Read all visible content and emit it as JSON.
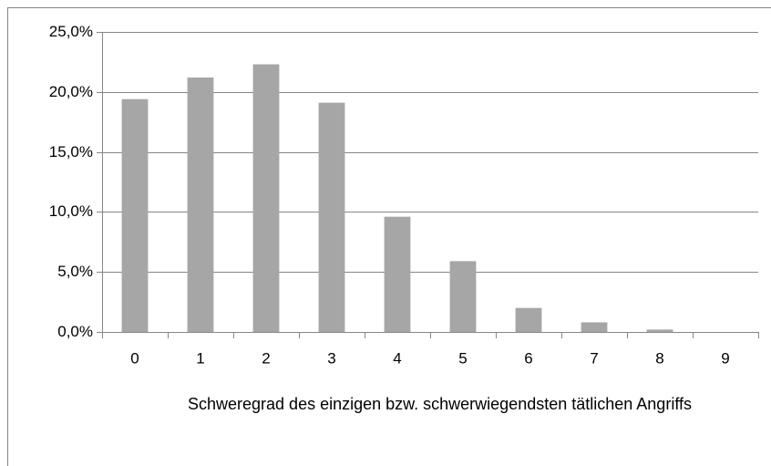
{
  "chart_data": {
    "type": "bar",
    "x_label": "Schweregrad des einzigen bzw. schwerwiegendsten tätlichen Angriffs",
    "categories": [
      "0",
      "1",
      "2",
      "3",
      "4",
      "5",
      "6",
      "7",
      "8",
      "9"
    ],
    "values": [
      19.4,
      21.2,
      22.3,
      19.1,
      9.6,
      5.9,
      2.0,
      0.8,
      0.2,
      0.0
    ],
    "color": "#a6a6a6",
    "ylim": [
      0,
      25
    ],
    "yticks": [
      {
        "value": 0,
        "label": "0,0%"
      },
      {
        "value": 5,
        "label": "5,0%"
      },
      {
        "value": 10,
        "label": "10,0%"
      },
      {
        "value": 15,
        "label": "15,0%"
      },
      {
        "value": 20,
        "label": "20,0%"
      },
      {
        "value": 25,
        "label": "25,0%"
      }
    ],
    "grid": true
  }
}
